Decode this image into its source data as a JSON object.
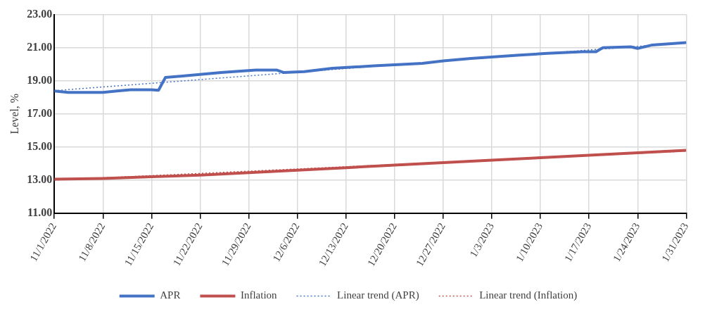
{
  "chart_data": {
    "type": "line",
    "ylabel": "Level, %",
    "legend": "bottom",
    "grid": true,
    "xlim": [
      "2022-11-01",
      "2023-01-31"
    ],
    "xticks": [
      {
        "value": "2022-11-01",
        "label": "11/1/2022"
      },
      {
        "value": "2022-11-08",
        "label": "11/8/2022"
      },
      {
        "value": "2022-11-15",
        "label": "11/15/2022"
      },
      {
        "value": "2022-11-22",
        "label": "11/22/2022"
      },
      {
        "value": "2022-11-29",
        "label": "11/29/2022"
      },
      {
        "value": "2022-12-06",
        "label": "12/6/2022"
      },
      {
        "value": "2022-12-13",
        "label": "12/13/2022"
      },
      {
        "value": "2022-12-20",
        "label": "12/20/2022"
      },
      {
        "value": "2022-12-27",
        "label": "12/27/2022"
      },
      {
        "value": "2023-01-03",
        "label": "1/3/2023"
      },
      {
        "value": "2023-01-10",
        "label": "1/10/2023"
      },
      {
        "value": "2023-01-17",
        "label": "1/17/2023"
      },
      {
        "value": "2023-01-24",
        "label": "1/24/2023"
      },
      {
        "value": "2023-01-31",
        "label": "1/31/2023"
      }
    ],
    "ylim": [
      11,
      23
    ],
    "yticks": [
      {
        "value": 11,
        "label": "11.00"
      },
      {
        "value": 13,
        "label": "13.00"
      },
      {
        "value": 15,
        "label": "15.00"
      },
      {
        "value": 17,
        "label": "17.00"
      },
      {
        "value": 19,
        "label": "19.00"
      },
      {
        "value": 21,
        "label": "21.00"
      },
      {
        "value": 23,
        "label": "23.00"
      }
    ],
    "series": [
      {
        "name": "APR",
        "color": "#4472c4",
        "line_style": "solid",
        "x": [
          "2022-11-01",
          "2022-11-03",
          "2022-11-08",
          "2022-11-10",
          "2022-11-12",
          "2022-11-15",
          "2022-11-16",
          "2022-11-17",
          "2022-11-20",
          "2022-11-25",
          "2022-11-30",
          "2022-12-03",
          "2022-12-04",
          "2022-12-07",
          "2022-12-11",
          "2022-12-17",
          "2022-12-24",
          "2022-12-27",
          "2022-12-31",
          "2023-01-07",
          "2023-01-11",
          "2023-01-16",
          "2023-01-18",
          "2023-01-19",
          "2023-01-23",
          "2023-01-24",
          "2023-01-26",
          "2023-01-31"
        ],
        "values": [
          18.38,
          18.3,
          18.3,
          18.38,
          18.45,
          18.45,
          18.42,
          19.2,
          19.3,
          19.5,
          19.65,
          19.65,
          19.5,
          19.55,
          19.75,
          19.9,
          20.05,
          20.2,
          20.35,
          20.55,
          20.65,
          20.75,
          20.75,
          21.0,
          21.05,
          20.95,
          21.15,
          21.3
        ]
      },
      {
        "name": "Inflation",
        "color": "#c0504d",
        "line_style": "solid",
        "x": [
          "2022-11-01",
          "2022-11-08",
          "2022-11-15",
          "2022-11-22",
          "2022-11-29",
          "2022-12-06",
          "2022-12-13",
          "2022-12-20",
          "2022-12-27",
          "2023-01-03",
          "2023-01-10",
          "2023-01-17",
          "2023-01-24",
          "2023-01-31"
        ],
        "values": [
          13.05,
          13.1,
          13.2,
          13.3,
          13.45,
          13.6,
          13.75,
          13.9,
          14.05,
          14.2,
          14.35,
          14.5,
          14.65,
          14.8
        ]
      },
      {
        "name": "Linear trend (APR)",
        "color": "#4472c4",
        "line_style": "dotted",
        "x": [
          "2022-11-01",
          "2023-01-31"
        ],
        "values": [
          18.4,
          21.3
        ]
      },
      {
        "name": "Linear trend (Inflation)",
        "color": "#c0504d",
        "line_style": "dotted",
        "x": [
          "2022-11-01",
          "2023-01-31"
        ],
        "values": [
          13.0,
          14.75
        ]
      }
    ]
  }
}
